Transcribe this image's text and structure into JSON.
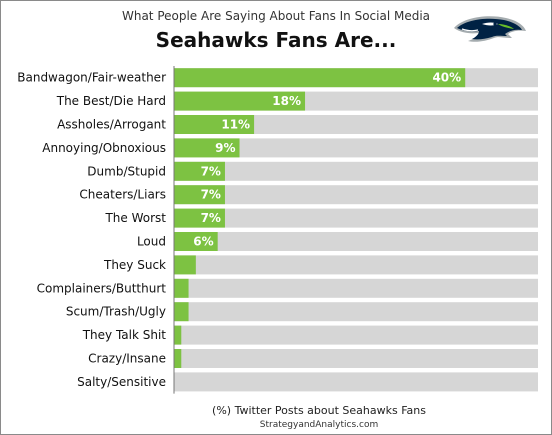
{
  "header": {
    "subtitle": "What People Are Saying About Fans In Social Media",
    "title": "Seahawks Fans Are..."
  },
  "logo": {
    "icon": "seahawk-head-logo",
    "colors": [
      "#002244",
      "#69BE28",
      "#A5ACAF"
    ]
  },
  "footer": {
    "xlabel": "(%) Twitter Posts about Seahawks Fans",
    "source": "StrategyandAnalytics.com"
  },
  "chart_data": {
    "type": "bar",
    "orientation": "horizontal",
    "categories": [
      "Bandwagon/Fair-weather",
      "The Best/Die Hard",
      "Assholes/Arrogant",
      "Annoying/Obnoxious",
      "Dumb/Stupid",
      "Cheaters/Liars",
      "The Worst",
      "Loud",
      "They Suck",
      "Complainers/Butthurt",
      "Scum/Trash/Ugly",
      "They Talk Shit",
      "Crazy/Insane",
      "Salty/Sensitive"
    ],
    "values": [
      40,
      18,
      11,
      9,
      7,
      7,
      7,
      6,
      3,
      2,
      2,
      1,
      1,
      0
    ],
    "data_labels": [
      "40%",
      "18%",
      "11%",
      "9%",
      "7%",
      "7%",
      "7%",
      "6%",
      "",
      "",
      "",
      "",
      "",
      ""
    ],
    "xlim": [
      0,
      50
    ],
    "bar_color": "#7DC242",
    "track_color": "#D6D6D6",
    "label_color": "#FFFFFF"
  }
}
